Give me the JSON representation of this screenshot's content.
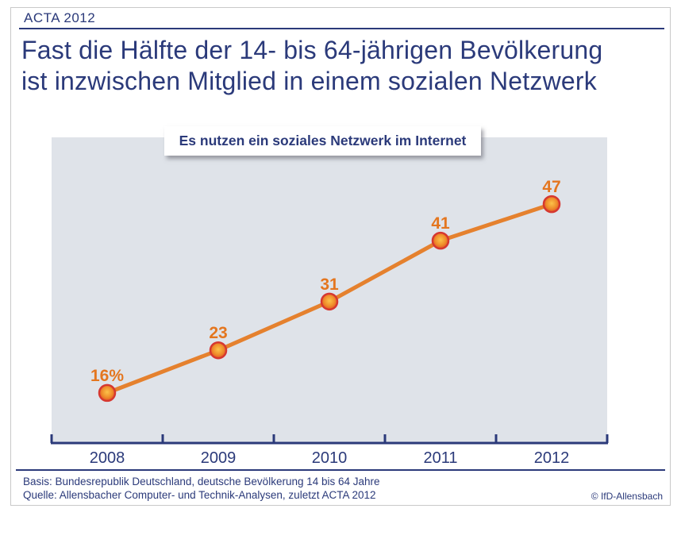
{
  "page": {
    "report_label": "ACTA 2012",
    "title_line1": "Fast die Hälfte der 14- bis 64-jährigen Bevölkerung",
    "title_line2": "ist inzwischen Mitglied in einem sozialen Netzwerk",
    "copyright": "© IfD-Allensbach"
  },
  "footer": {
    "basis": "Basis: Bundesrepublik Deutschland, deutsche Bevölkerung 14 bis 64 Jahre",
    "quelle": "Quelle: Allensbacher Computer- und Technik-Analysen, zuletzt ACTA 2012"
  },
  "chart_data": {
    "type": "line",
    "title": "Es nutzen ein soziales Netzwerk im Internet",
    "categories": [
      "2008",
      "2009",
      "2010",
      "2011",
      "2012"
    ],
    "values": [
      16,
      23,
      31,
      41,
      47
    ],
    "value_labels": [
      "16%",
      "23",
      "31",
      "41",
      "47"
    ],
    "unit": "percent",
    "ylim": [
      8,
      58
    ],
    "grid": false,
    "legend": "none",
    "colors": {
      "line": "#e5812e",
      "point_ring": "#d63830",
      "point_center": "#fcc24a",
      "point_mid": "#ef8e2b",
      "point_edge": "#df4a22",
      "value_label": "#e4761f",
      "axis": "#2b3a7a",
      "plot_background": "#dfe3e9",
      "text": "#2b3a7a"
    }
  }
}
